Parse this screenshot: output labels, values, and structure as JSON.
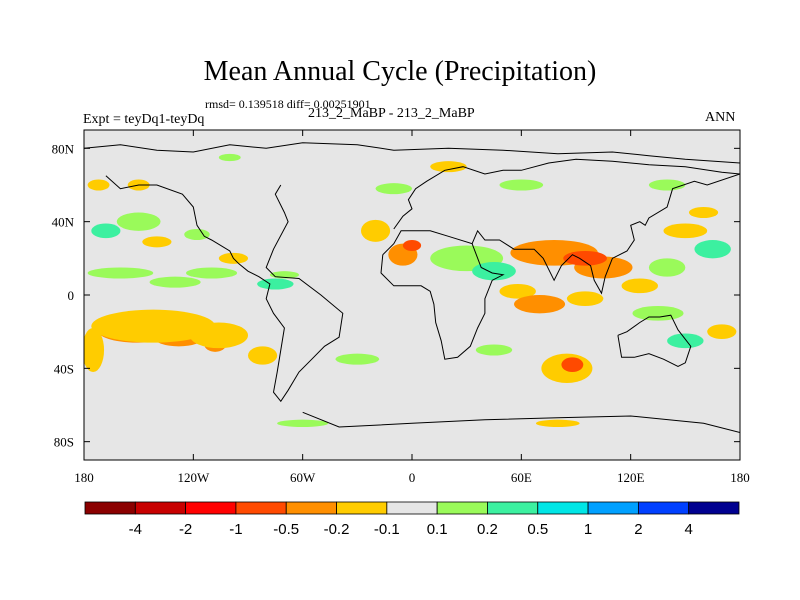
{
  "header": {
    "title": "Mean Annual Cycle (Precipitation)",
    "stats": "rmsd= 0.139518 diff= 0.00251901",
    "left_label": "Expt = teyDq1-teyDq",
    "center_label": "213_2_MaBP - 213_2_MaBP",
    "right_label": "ANN"
  },
  "chart_data": {
    "type": "heatmap",
    "title": "Mean Annual Cycle (Precipitation)",
    "x_range": [
      -180,
      180
    ],
    "y_range": [
      -90,
      90
    ],
    "x_ticks": [
      {
        "value": -180,
        "label": "180"
      },
      {
        "value": -120,
        "label": "120W"
      },
      {
        "value": -60,
        "label": "60W"
      },
      {
        "value": 0,
        "label": "0"
      },
      {
        "value": 60,
        "label": "60E"
      },
      {
        "value": 120,
        "label": "120E"
      },
      {
        "value": 180,
        "label": "180"
      }
    ],
    "y_ticks": [
      {
        "value": 80,
        "label": "80N"
      },
      {
        "value": 40,
        "label": "40N"
      },
      {
        "value": 0,
        "label": "0"
      },
      {
        "value": -40,
        "label": "40S"
      },
      {
        "value": -80,
        "label": "80S"
      }
    ],
    "background_color": "#e6e6e6",
    "colorbar": {
      "colors": [
        "#8b0000",
        "#c80000",
        "#ff0000",
        "#ff4a00",
        "#ff8f00",
        "#ffcc00",
        "#e6e6e6",
        "#9afa5a",
        "#3cf0a0",
        "#00e6e6",
        "#00a0ff",
        "#0040ff",
        "#000090"
      ],
      "labels": [
        "-4",
        "-2",
        "-1",
        "-0.5",
        "-0.2",
        "-0.1",
        "0.1",
        "0.2",
        "0.5",
        "1",
        "2",
        "4"
      ]
    },
    "anomaly_regions": [
      {
        "lon": -150,
        "lat": -20,
        "rlon": 22,
        "rlat": 6,
        "level": -0.5
      },
      {
        "lon": -128,
        "lat": -23,
        "rlon": 14,
        "rlat": 5,
        "level": -0.5
      },
      {
        "lon": -108,
        "lat": -27,
        "rlon": 6,
        "rlat": 4,
        "level": -0.5
      },
      {
        "lon": -142,
        "lat": -17,
        "rlon": 34,
        "rlat": 9,
        "level": -0.2
      },
      {
        "lon": -106,
        "lat": -22,
        "rlon": 16,
        "rlat": 7,
        "level": -0.2
      },
      {
        "lon": -175,
        "lat": -30,
        "rlon": 6,
        "rlat": 12,
        "level": -0.1
      },
      {
        "lon": -82,
        "lat": -33,
        "rlon": 8,
        "rlat": 5,
        "level": -0.2
      },
      {
        "lon": -160,
        "lat": 12,
        "rlon": 18,
        "rlat": 3,
        "level": 0.2
      },
      {
        "lon": -110,
        "lat": 12,
        "rlon": 14,
        "rlat": 3,
        "level": 0.2
      },
      {
        "lon": -130,
        "lat": 7,
        "rlon": 14,
        "rlat": 3,
        "level": 0.2
      },
      {
        "lon": -75,
        "lat": 6,
        "rlon": 10,
        "rlat": 3,
        "level": 0.5
      },
      {
        "lon": -70,
        "lat": 11,
        "rlon": 8,
        "rlat": 2,
        "level": 0.2
      },
      {
        "lon": -150,
        "lat": 40,
        "rlon": 12,
        "rlat": 5,
        "level": 0.2
      },
      {
        "lon": -168,
        "lat": 35,
        "rlon": 8,
        "rlat": 4,
        "level": 0.5
      },
      {
        "lon": -118,
        "lat": 33,
        "rlon": 7,
        "rlat": 3,
        "level": 0.2
      },
      {
        "lon": -140,
        "lat": 29,
        "rlon": 8,
        "rlat": 3,
        "level": -0.2
      },
      {
        "lon": -98,
        "lat": 20,
        "rlon": 8,
        "rlat": 3,
        "level": -0.2
      },
      {
        "lon": -172,
        "lat": 60,
        "rlon": 6,
        "rlat": 3,
        "level": -0.2
      },
      {
        "lon": -150,
        "lat": 60,
        "rlon": 6,
        "rlat": 3,
        "level": -0.1
      },
      {
        "lon": -100,
        "lat": 75,
        "rlon": 6,
        "rlat": 2,
        "level": 0.2
      },
      {
        "lon": -20,
        "lat": 35,
        "rlon": 8,
        "rlat": 6,
        "level": -0.2
      },
      {
        "lon": -5,
        "lat": 22,
        "rlon": 8,
        "rlat": 6,
        "level": -0.5
      },
      {
        "lon": 0,
        "lat": 27,
        "rlon": 5,
        "rlat": 3,
        "level": -1
      },
      {
        "lon": 30,
        "lat": 20,
        "rlon": 20,
        "rlat": 7,
        "level": 0.2
      },
      {
        "lon": 45,
        "lat": 13,
        "rlon": 12,
        "rlat": 5,
        "level": 0.5
      },
      {
        "lon": 78,
        "lat": 23,
        "rlon": 24,
        "rlat": 7,
        "level": -0.5
      },
      {
        "lon": 105,
        "lat": 15,
        "rlon": 16,
        "rlat": 6,
        "level": -0.5
      },
      {
        "lon": 95,
        "lat": 20,
        "rlon": 12,
        "rlat": 4,
        "level": -1
      },
      {
        "lon": 125,
        "lat": 5,
        "rlon": 10,
        "rlat": 4,
        "level": -0.2
      },
      {
        "lon": 58,
        "lat": 2,
        "rlon": 10,
        "rlat": 4,
        "level": -0.2
      },
      {
        "lon": 70,
        "lat": -5,
        "rlon": 14,
        "rlat": 5,
        "level": -0.5
      },
      {
        "lon": 95,
        "lat": -2,
        "rlon": 10,
        "rlat": 4,
        "level": -0.2
      },
      {
        "lon": 140,
        "lat": 15,
        "rlon": 10,
        "rlat": 5,
        "level": 0.2
      },
      {
        "lon": 165,
        "lat": 25,
        "rlon": 10,
        "rlat": 5,
        "level": 0.5
      },
      {
        "lon": 150,
        "lat": 35,
        "rlon": 12,
        "rlat": 4,
        "level": -0.2
      },
      {
        "lon": 85,
        "lat": -40,
        "rlon": 14,
        "rlat": 8,
        "level": -0.2
      },
      {
        "lon": 88,
        "lat": -38,
        "rlon": 6,
        "rlat": 4,
        "level": -1
      },
      {
        "lon": 135,
        "lat": -10,
        "rlon": 14,
        "rlat": 4,
        "level": 0.2
      },
      {
        "lon": 150,
        "lat": -25,
        "rlon": 10,
        "rlat": 4,
        "level": 0.5
      },
      {
        "lon": 170,
        "lat": -20,
        "rlon": 8,
        "rlat": 4,
        "level": -0.2
      },
      {
        "lon": 45,
        "lat": -30,
        "rlon": 10,
        "rlat": 3,
        "level": 0.2
      },
      {
        "lon": -30,
        "lat": -35,
        "rlon": 12,
        "rlat": 3,
        "level": 0.2
      },
      {
        "lon": -10,
        "lat": 58,
        "rlon": 10,
        "rlat": 3,
        "level": 0.2
      },
      {
        "lon": 20,
        "lat": 70,
        "rlon": 10,
        "rlat": 3,
        "level": -0.2
      },
      {
        "lon": 60,
        "lat": 60,
        "rlon": 12,
        "rlat": 3,
        "level": 0.2
      },
      {
        "lon": 140,
        "lat": 60,
        "rlon": 10,
        "rlat": 3,
        "level": 0.2
      },
      {
        "lon": 160,
        "lat": 45,
        "rlon": 8,
        "rlat": 3,
        "level": -0.2
      },
      {
        "lon": -60,
        "lat": -70,
        "rlon": 14,
        "rlat": 2,
        "level": 0.2
      },
      {
        "lon": 80,
        "lat": -70,
        "rlon": 12,
        "rlat": 2,
        "level": -0.2
      }
    ],
    "coastlines": [
      [
        [
          -180,
          80
        ],
        [
          -160,
          82
        ],
        [
          -140,
          79
        ],
        [
          -120,
          78
        ],
        [
          -100,
          82
        ],
        [
          -80,
          80
        ],
        [
          -60,
          83
        ],
        [
          -30,
          82
        ],
        [
          -10,
          79
        ],
        [
          20,
          80
        ],
        [
          50,
          79
        ],
        [
          80,
          77
        ],
        [
          110,
          78
        ],
        [
          130,
          76
        ],
        [
          150,
          74
        ],
        [
          180,
          72
        ]
      ],
      [
        [
          -72,
          60
        ],
        [
          -75,
          55
        ],
        [
          -70,
          45
        ],
        [
          -68,
          40
        ],
        [
          -76,
          25
        ],
        [
          -80,
          15
        ],
        [
          -75,
          10
        ],
        [
          -62,
          9
        ],
        [
          -50,
          0
        ],
        [
          -38,
          -10
        ],
        [
          -40,
          -23
        ],
        [
          -48,
          -28
        ],
        [
          -55,
          -35
        ],
        [
          -62,
          -42
        ],
        [
          -68,
          -52
        ],
        [
          -72,
          -58
        ],
        [
          -76,
          -53
        ],
        [
          -74,
          -42
        ],
        [
          -72,
          -30
        ],
        [
          -70,
          -18
        ],
        [
          -76,
          -10
        ],
        [
          -80,
          -2
        ],
        [
          -78,
          6
        ],
        [
          -84,
          10
        ],
        [
          -90,
          13
        ],
        [
          -95,
          17
        ],
        [
          -98,
          20
        ],
        [
          -100,
          24
        ],
        [
          -110,
          30
        ],
        [
          -114,
          32
        ],
        [
          -118,
          38
        ],
        [
          -120,
          48
        ],
        [
          -126,
          55
        ],
        [
          -140,
          60
        ],
        [
          -150,
          60
        ],
        [
          -160,
          58
        ],
        [
          -168,
          65
        ]
      ],
      [
        [
          -16,
          22
        ],
        [
          -17,
          12
        ],
        [
          -10,
          5
        ],
        [
          5,
          5
        ],
        [
          10,
          2
        ],
        [
          12,
          -5
        ],
        [
          13,
          -15
        ],
        [
          16,
          -25
        ],
        [
          18,
          -35
        ],
        [
          25,
          -34
        ],
        [
          32,
          -28
        ],
        [
          36,
          -18
        ],
        [
          40,
          -10
        ],
        [
          40,
          -2
        ],
        [
          44,
          8
        ],
        [
          50,
          11
        ],
        [
          44,
          12
        ],
        [
          38,
          15
        ],
        [
          33,
          28
        ],
        [
          20,
          32
        ],
        [
          10,
          35
        ],
        [
          0,
          35
        ],
        [
          -6,
          35
        ],
        [
          -10,
          28
        ],
        [
          -16,
          22
        ]
      ],
      [
        [
          -10,
          36
        ],
        [
          -5,
          43
        ],
        [
          0,
          47
        ],
        [
          -2,
          52
        ],
        [
          2,
          58
        ],
        [
          8,
          62
        ],
        [
          18,
          68
        ],
        [
          28,
          70
        ],
        [
          40,
          66
        ],
        [
          50,
          68
        ],
        [
          60,
          68
        ],
        [
          75,
          72
        ],
        [
          90,
          74
        ],
        [
          110,
          73
        ],
        [
          130,
          71
        ],
        [
          150,
          70
        ],
        [
          170,
          67
        ],
        [
          180,
          66
        ]
      ],
      [
        [
          33,
          28
        ],
        [
          36,
          35
        ],
        [
          40,
          30
        ],
        [
          48,
          30
        ],
        [
          56,
          25
        ],
        [
          60,
          25
        ],
        [
          67,
          25
        ],
        [
          72,
          20
        ],
        [
          78,
          8
        ],
        [
          82,
          16
        ],
        [
          88,
          22
        ],
        [
          92,
          20
        ],
        [
          98,
          16
        ],
        [
          100,
          8
        ],
        [
          104,
          1
        ],
        [
          106,
          10
        ],
        [
          110,
          20
        ],
        [
          118,
          24
        ],
        [
          122,
          30
        ],
        [
          120,
          38
        ],
        [
          125,
          40
        ],
        [
          128,
          38
        ],
        [
          130,
          42
        ],
        [
          140,
          48
        ],
        [
          143,
          58
        ],
        [
          155,
          62
        ],
        [
          162,
          60
        ],
        [
          180,
          66
        ]
      ],
      [
        [
          113,
          -22
        ],
        [
          115,
          -34
        ],
        [
          122,
          -34
        ],
        [
          130,
          -32
        ],
        [
          138,
          -35
        ],
        [
          146,
          -39
        ],
        [
          150,
          -37
        ],
        [
          153,
          -28
        ],
        [
          146,
          -19
        ],
        [
          142,
          -11
        ],
        [
          136,
          -12
        ],
        [
          130,
          -12
        ],
        [
          125,
          -15
        ],
        [
          118,
          -20
        ],
        [
          113,
          -22
        ]
      ],
      [
        [
          -60,
          -64
        ],
        [
          -40,
          -72
        ],
        [
          0,
          -70
        ],
        [
          40,
          -68
        ],
        [
          80,
          -67
        ],
        [
          120,
          -66
        ],
        [
          160,
          -70
        ],
        [
          180,
          -75
        ]
      ]
    ]
  }
}
